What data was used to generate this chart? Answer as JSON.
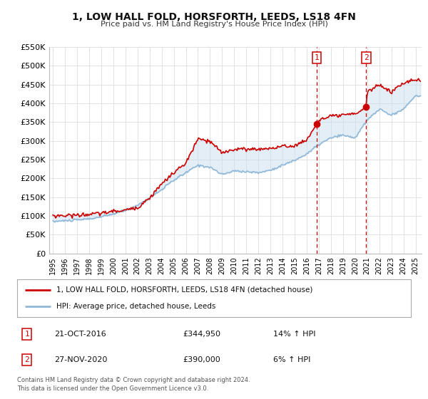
{
  "title": "1, LOW HALL FOLD, HORSFORTH, LEEDS, LS18 4FN",
  "subtitle": "Price paid vs. HM Land Registry's House Price Index (HPI)",
  "ylim": [
    0,
    550000
  ],
  "yticks": [
    0,
    50000,
    100000,
    150000,
    200000,
    250000,
    300000,
    350000,
    400000,
    450000,
    500000,
    550000
  ],
  "ytick_labels": [
    "£0",
    "£50K",
    "£100K",
    "£150K",
    "£200K",
    "£250K",
    "£300K",
    "£350K",
    "£400K",
    "£450K",
    "£500K",
    "£550K"
  ],
  "xlim_start": 1994.7,
  "xlim_end": 2025.5,
  "xticks": [
    1995,
    1996,
    1997,
    1998,
    1999,
    2000,
    2001,
    2002,
    2003,
    2004,
    2005,
    2006,
    2007,
    2008,
    2009,
    2010,
    2011,
    2012,
    2013,
    2014,
    2015,
    2016,
    2017,
    2018,
    2019,
    2020,
    2021,
    2022,
    2023,
    2024,
    2025
  ],
  "line1_color": "#cc0000",
  "line2_color": "#90b8d8",
  "fill_color": "#c8dff0",
  "marker_color": "#cc0000",
  "vline_color": "#cc0000",
  "sale1_x": 2016.81,
  "sale1_y": 344950,
  "sale2_x": 2020.92,
  "sale2_y": 390000,
  "legend_line1": "1, LOW HALL FOLD, HORSFORTH, LEEDS, LS18 4FN (detached house)",
  "legend_line2": "HPI: Average price, detached house, Leeds",
  "annotation1_label": "1",
  "annotation1_date": "21-OCT-2016",
  "annotation1_price": "£344,950",
  "annotation1_hpi": "14% ↑ HPI",
  "annotation2_label": "2",
  "annotation2_date": "27-NOV-2020",
  "annotation2_price": "£390,000",
  "annotation2_hpi": "6% ↑ HPI",
  "footer": "Contains HM Land Registry data © Crown copyright and database right 2024.\nThis data is licensed under the Open Government Licence v3.0.",
  "background_color": "#ffffff",
  "plot_bg_color": "#ffffff",
  "grid_color": "#dddddd"
}
